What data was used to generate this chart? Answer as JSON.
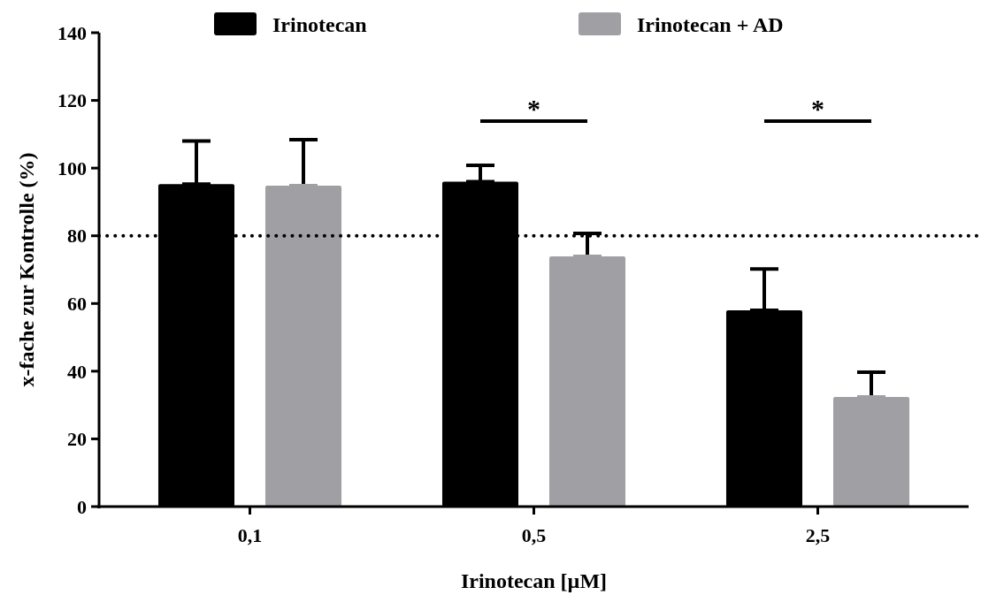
{
  "chart_data": {
    "type": "bar",
    "ylabel": "x-fache zur Kontrolle (%)",
    "xlabel": "Irinotecan [µM]",
    "categories": [
      "0,1",
      "0,5",
      "2,5"
    ],
    "series": [
      {
        "name": "Irinotecan",
        "color": "#000000",
        "values": [
          95.3,
          96,
          58
        ],
        "errors": [
          [
            95.3,
            108
          ],
          [
            96,
            100.8
          ],
          [
            58,
            70.2
          ]
        ]
      },
      {
        "name": "Irinotecan + AD",
        "color": "#a0a0a4",
        "values": [
          94.8,
          73.9,
          32.4
        ],
        "errors": [
          [
            94.8,
            108.4
          ],
          [
            73.9,
            80.7
          ],
          [
            32.4,
            39.7
          ]
        ]
      }
    ],
    "ylim": [
      0,
      140
    ],
    "yticks": [
      0,
      20,
      40,
      60,
      80,
      100,
      120,
      140
    ],
    "grid": false,
    "legend": "top",
    "ref_lines": [
      {
        "axis": "y",
        "value": 80,
        "line_style": "dotted",
        "color": "#000000"
      }
    ],
    "annotations": [
      "*",
      "*"
    ]
  }
}
